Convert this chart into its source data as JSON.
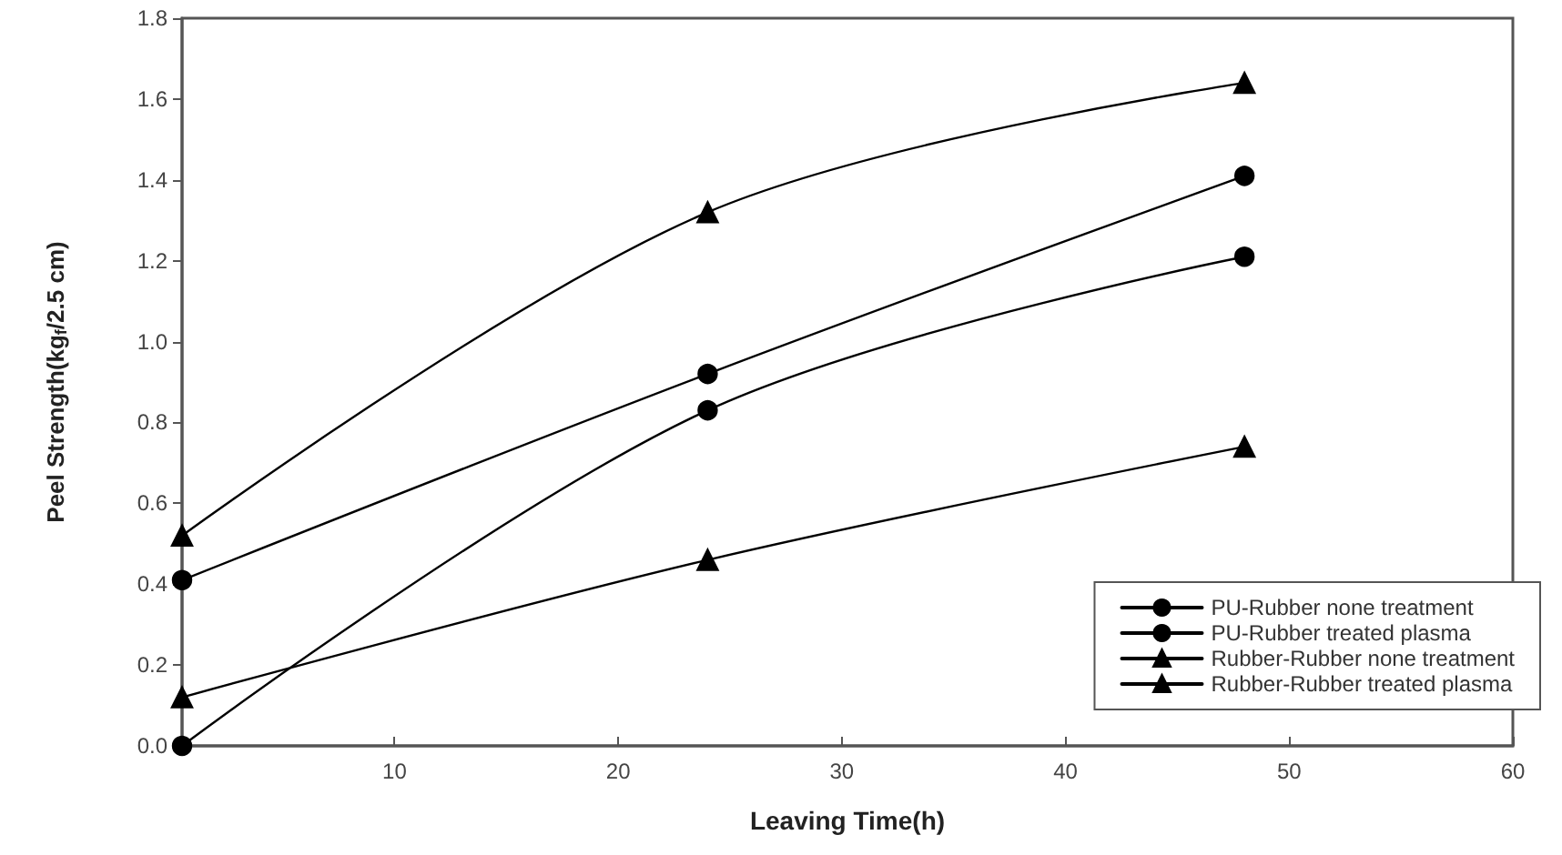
{
  "chart_data": {
    "type": "line",
    "xlabel": "Leaving Time(h)",
    "ylabel": "Peel Strength(kg$_{f}$/2.5 cm)",
    "x": [
      0.5,
      24,
      48
    ],
    "series": [
      {
        "name": "PU-Rubber none treatment",
        "color": "#000000",
        "marker": "circle",
        "values": [
          0,
          0.83,
          1.21
        ]
      },
      {
        "name": "PU-Rubber treated plasma",
        "color": "#000000",
        "marker": "circle",
        "values": [
          0.41,
          0.92,
          1.41
        ]
      },
      {
        "name": "Rubber-Rubber none treatment",
        "color": "#000000",
        "marker": "triangle",
        "values": [
          0.12,
          0.46,
          0.74
        ]
      },
      {
        "name": "Rubber-Rubber treated plasma",
        "color": "#000000",
        "marker": "triangle",
        "values": [
          0.52,
          1.32,
          1.64
        ]
      }
    ],
    "xlim": [
      0.5,
      60
    ],
    "xticks": [
      10,
      20,
      30,
      40,
      50,
      60
    ],
    "ylim": [
      0,
      1.8
    ],
    "yticks": [
      {
        "value": 0,
        "label": "0.0"
      },
      0.2,
      0.4,
      0.6,
      0.8,
      {
        "value": 1,
        "label": "1.0"
      },
      1.2,
      1.4,
      1.6,
      1.8
    ],
    "grid": false,
    "legend": "bottom right",
    "line_style": "solid"
  }
}
